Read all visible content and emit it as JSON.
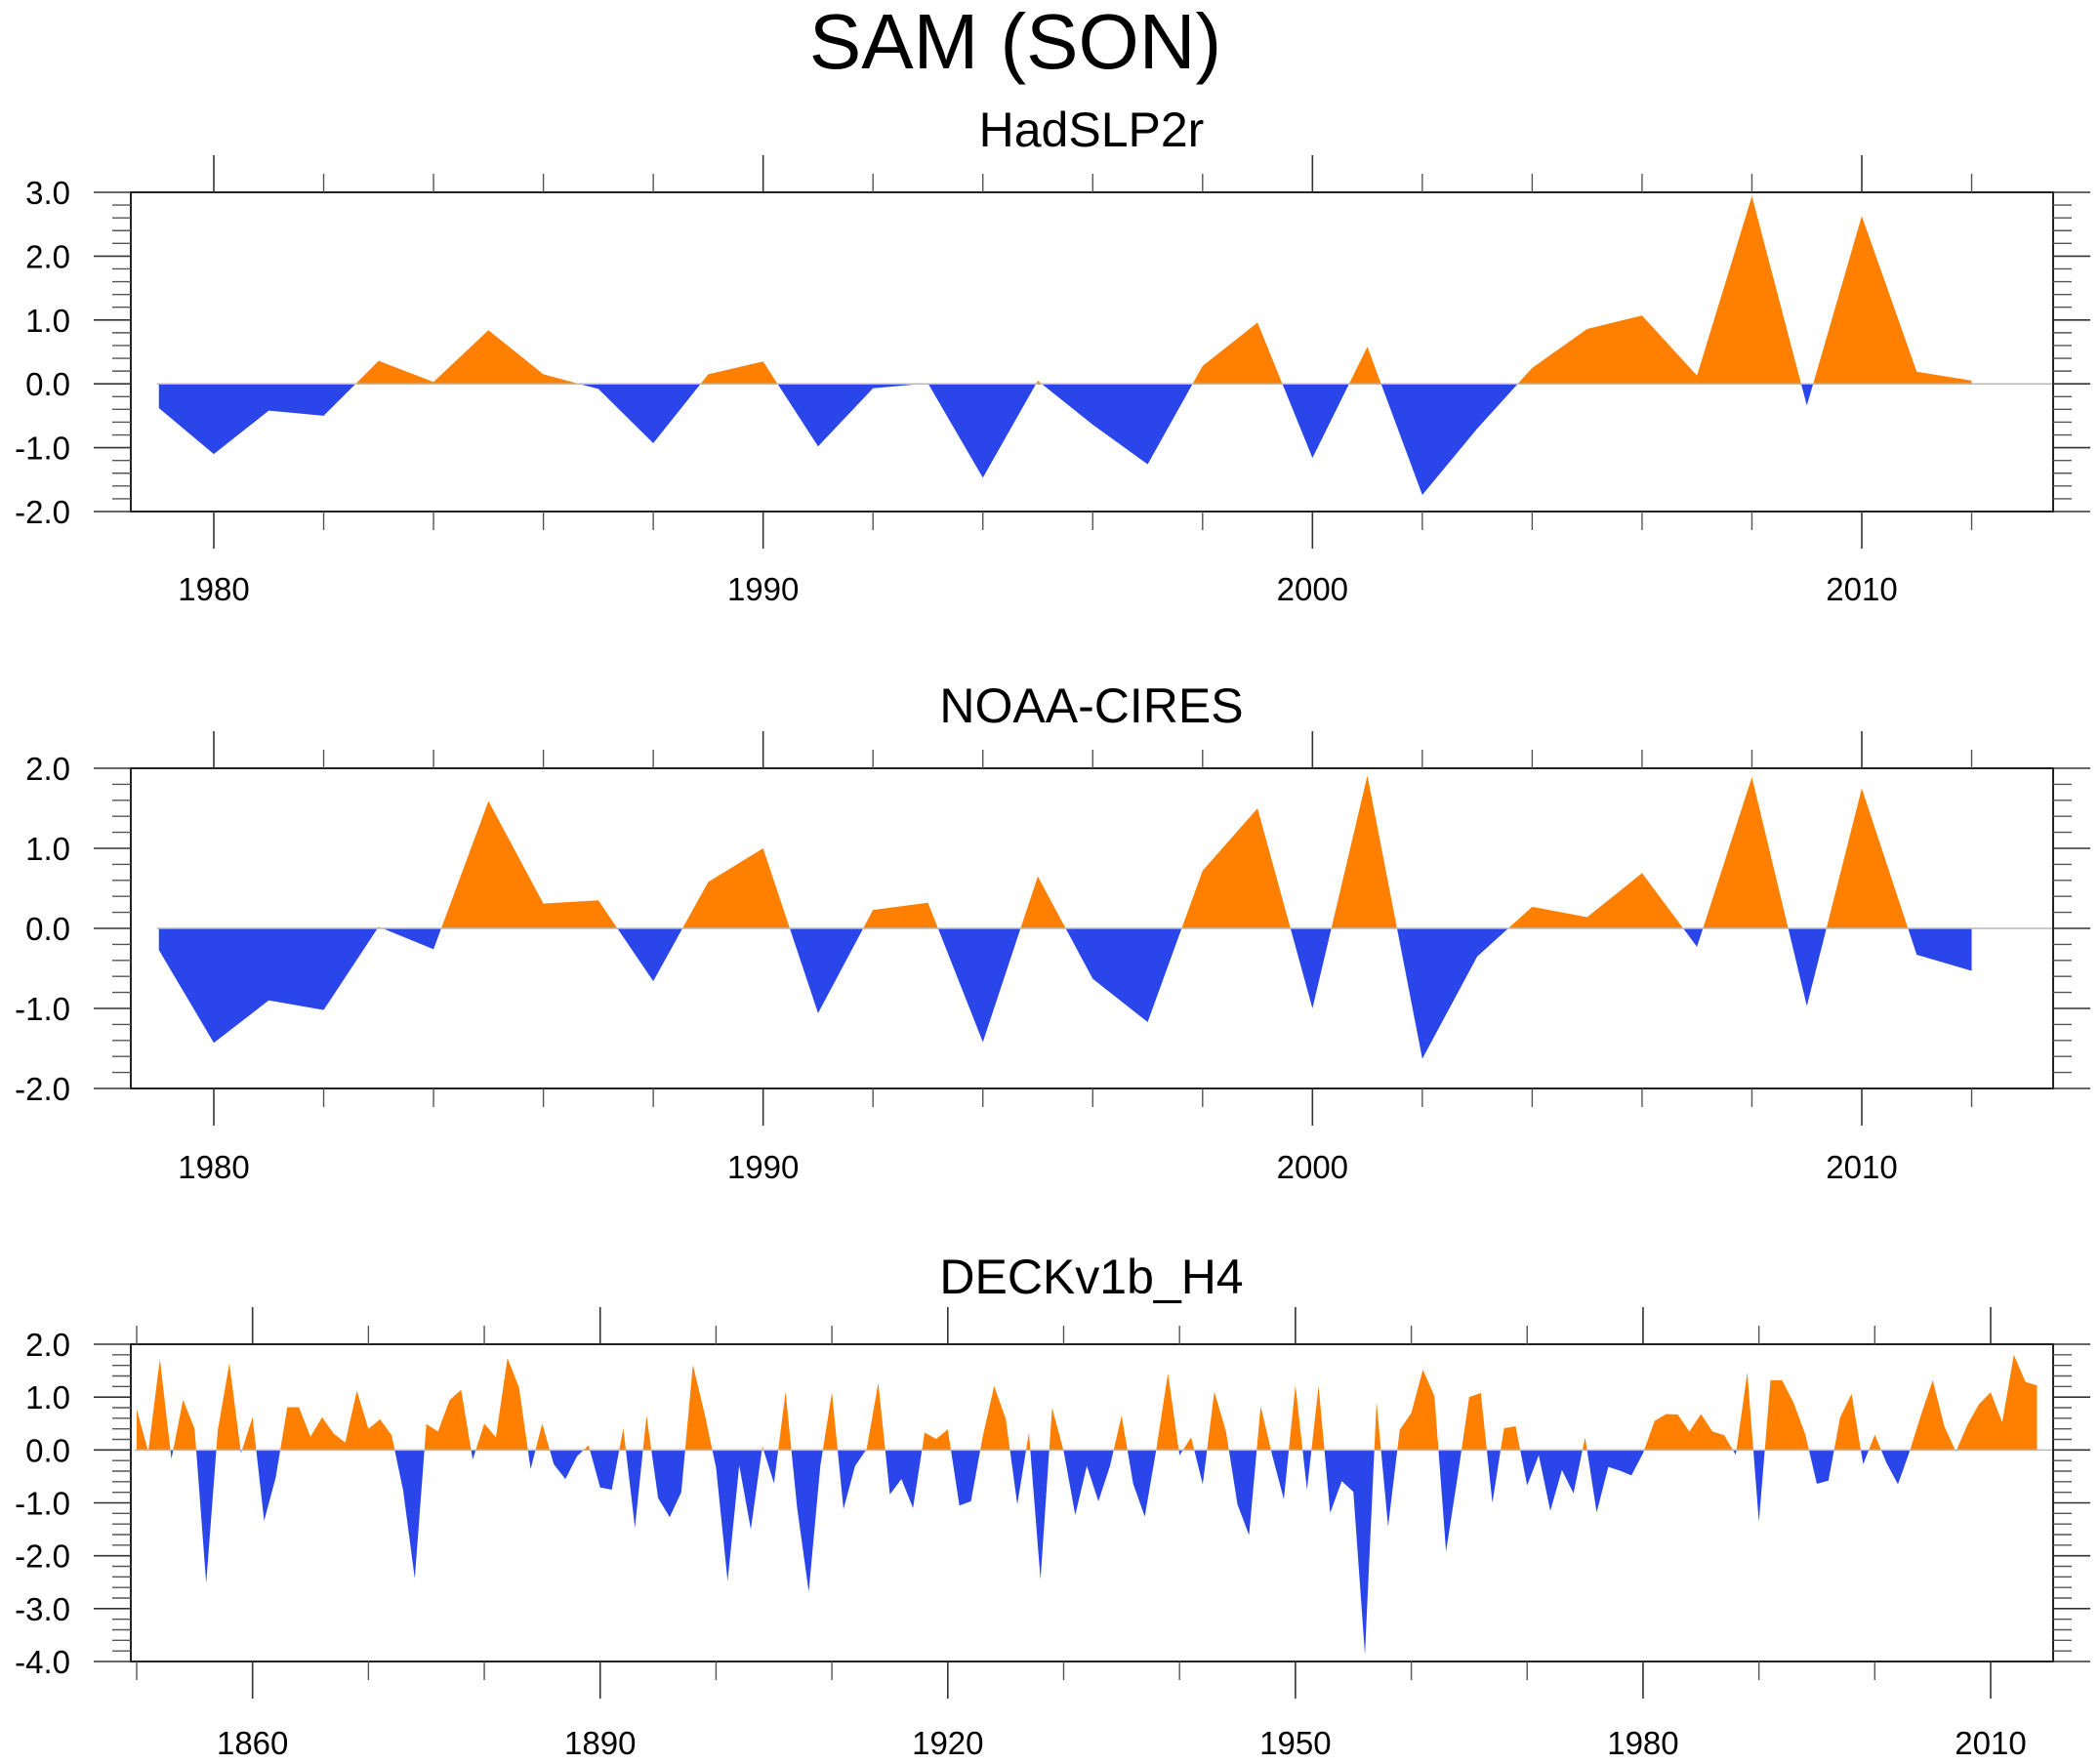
{
  "figure": {
    "title": "SAM (SON)",
    "colors": {
      "positive": "#FF8000",
      "negative": "#2A45EA",
      "zero_line": "#B8B8B8",
      "frame": "#222222"
    }
  },
  "chart_data": [
    {
      "type": "area",
      "title": "HadSLP2r",
      "xlabel": "",
      "ylabel": "",
      "xlim": [
        1978,
        2014
      ],
      "ylim": [
        -2.0,
        3.0
      ],
      "xticks_major": [
        1980,
        1990,
        2000,
        2010
      ],
      "xticks_minor_step": 2,
      "xtick_labels": [
        "1980",
        "1990",
        "2000",
        "2010"
      ],
      "yticks": [
        3.0,
        2.0,
        1.0,
        0.0,
        -1.0,
        -2.0
      ],
      "ytick_labels": [
        "3.0",
        "2.0",
        "1.0",
        "0.0",
        "-1.0",
        "-2.0"
      ],
      "ytick_minor_step": 0.2,
      "grid": false,
      "reference_line": 0.0,
      "x": [
        1979,
        1980,
        1981,
        1982,
        1983,
        1984,
        1985,
        1986,
        1987,
        1988,
        1989,
        1990,
        1991,
        1992,
        1993,
        1994,
        1995,
        1996,
        1997,
        1998,
        1999,
        2000,
        2001,
        2002,
        2003,
        2004,
        2005,
        2006,
        2007,
        2008,
        2009,
        2010,
        2011,
        2012
      ],
      "values": [
        -0.38,
        -1.1,
        -0.42,
        -0.5,
        0.36,
        0.03,
        0.84,
        0.15,
        -0.08,
        -0.93,
        0.15,
        0.35,
        -0.98,
        -0.07,
        0.01,
        -1.47,
        0.05,
        -0.64,
        -1.26,
        0.28,
        0.96,
        -1.16,
        0.58,
        -1.74,
        -0.7,
        0.25,
        0.86,
        1.07,
        0.13,
        2.94,
        -0.34,
        2.63,
        0.19,
        0.05
      ]
    },
    {
      "type": "area",
      "title": "NOAA-CIRES",
      "xlabel": "",
      "ylabel": "",
      "xlim": [
        1978,
        2014
      ],
      "ylim": [
        -2.0,
        2.0
      ],
      "xticks_major": [
        1980,
        1990,
        2000,
        2010
      ],
      "xticks_minor_step": 2,
      "xtick_labels": [
        "1980",
        "1990",
        "2000",
        "2010"
      ],
      "yticks": [
        2.0,
        1.0,
        0.0,
        -1.0,
        -2.0
      ],
      "ytick_labels": [
        "2.0",
        "1.0",
        "0.0",
        "-1.0",
        "-2.0"
      ],
      "ytick_minor_step": 0.2,
      "grid": false,
      "reference_line": 0.0,
      "x": [
        1979,
        1980,
        1981,
        1982,
        1983,
        1984,
        1985,
        1986,
        1987,
        1988,
        1989,
        1990,
        1991,
        1992,
        1993,
        1994,
        1995,
        1996,
        1997,
        1998,
        1999,
        2000,
        2001,
        2002,
        2003,
        2004,
        2005,
        2006,
        2007,
        2008,
        2009,
        2010,
        2011,
        2012
      ],
      "values": [
        -0.27,
        -1.43,
        -0.9,
        -1.02,
        0.02,
        -0.26,
        1.59,
        0.31,
        0.35,
        -0.66,
        0.58,
        1.0,
        -1.06,
        0.23,
        0.32,
        -1.42,
        0.65,
        -0.63,
        -1.17,
        0.72,
        1.5,
        -1.0,
        1.91,
        -1.63,
        -0.35,
        0.27,
        0.14,
        0.69,
        -0.23,
        1.89,
        -0.97,
        1.75,
        -0.33,
        -0.53
      ]
    },
    {
      "type": "area",
      "title": "DECKv1b_H4",
      "xlabel": "",
      "ylabel": "",
      "xlim": [
        1849.6,
        2016.1
      ],
      "ylim": [
        -4.0,
        2.0
      ],
      "xticks_major": [
        1860,
        1890,
        1920,
        1950,
        1980,
        2010
      ],
      "xticks_minor_step": 10,
      "xtick_labels": [
        "1860",
        "1890",
        "1920",
        "1950",
        "1980",
        "2010"
      ],
      "yticks": [
        2.0,
        1.0,
        0.0,
        -1.0,
        -2.0,
        -3.0,
        -4.0
      ],
      "ytick_labels": [
        "2.0",
        "1.0",
        "0.0",
        "-1.0",
        "-2.0",
        "-3.0",
        "-4.0"
      ],
      "ytick_minor_step": 0.2,
      "grid": false,
      "reference_line": 0.0,
      "x_start": 1850,
      "x_step": 1,
      "values": [
        0.77,
        -0.03,
        1.72,
        -0.17,
        0.95,
        0.4,
        -2.52,
        0.37,
        1.64,
        -0.06,
        0.62,
        -1.34,
        -0.52,
        0.81,
        0.81,
        0.25,
        0.62,
        0.31,
        0.14,
        1.12,
        0.4,
        0.58,
        0.28,
        -0.77,
        -2.43,
        0.49,
        0.35,
        0.94,
        1.14,
        -0.18,
        0.5,
        0.24,
        1.74,
        1.18,
        -0.36,
        0.5,
        -0.27,
        -0.55,
        -0.12,
        0.09,
        -0.71,
        -0.75,
        0.41,
        -1.47,
        0.65,
        -0.91,
        -1.27,
        -0.8,
        1.61,
        0.7,
        -0.33,
        -2.48,
        -0.29,
        -1.5,
        0.07,
        -0.63,
        1.1,
        -1.1,
        -2.68,
        -0.3,
        1.09,
        -1.12,
        -0.3,
        0.02,
        1.27,
        -0.84,
        -0.55,
        -1.1,
        0.33,
        0.21,
        0.39,
        -1.05,
        -0.97,
        0.24,
        1.21,
        0.59,
        -1.03,
        0.33,
        -2.45,
        0.8,
        -0.02,
        -1.23,
        -0.3,
        -0.97,
        -0.3,
        0.65,
        -0.64,
        -1.26,
        0.02,
        1.45,
        -0.1,
        0.24,
        -0.65,
        1.1,
        0.36,
        -1.03,
        -1.61,
        0.83,
        -0.1,
        -0.93,
        1.23,
        -0.75,
        1.21,
        -1.19,
        -0.59,
        -0.79,
        -3.87,
        0.91,
        -1.45,
        0.38,
        0.7,
        1.52,
        1.02,
        -1.92,
        -0.5,
        1.0,
        1.08,
        -1.0,
        0.41,
        0.45,
        -0.67,
        -0.1,
        -1.15,
        -0.38,
        -0.82,
        0.24,
        -1.18,
        -0.32,
        -0.39,
        -0.48,
        -0.06,
        0.55,
        0.68,
        0.67,
        0.35,
        0.68,
        0.35,
        0.28,
        -0.09,
        1.47,
        -1.36,
        1.32,
        1.32,
        0.89,
        0.3,
        -0.64,
        -0.58,
        0.61,
        1.06,
        -0.27,
        0.29,
        -0.24,
        -0.65,
        -0.03,
        0.67,
        1.32,
        0.45,
        -0.03,
        0.48,
        0.87,
        1.09,
        0.52,
        1.8,
        1.29,
        1.22
      ]
    }
  ]
}
